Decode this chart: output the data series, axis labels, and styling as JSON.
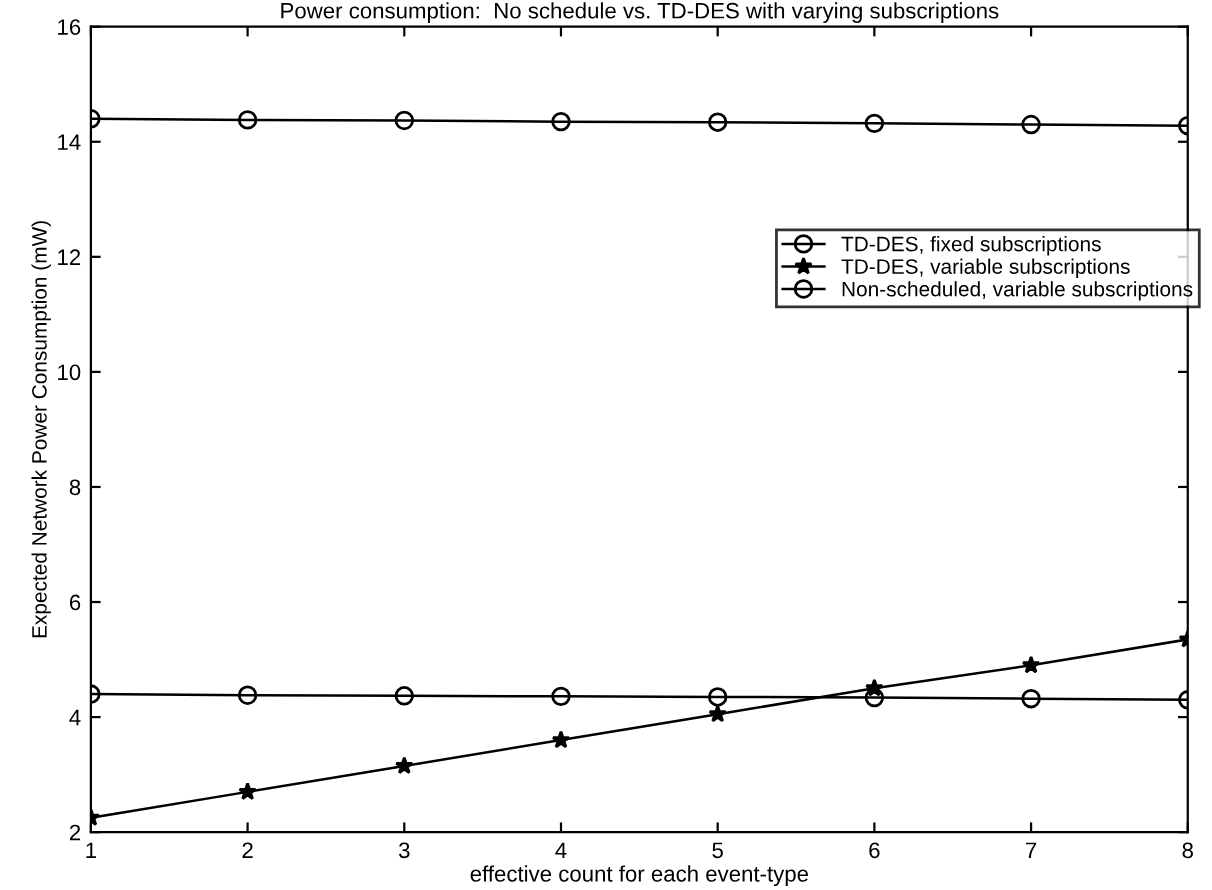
{
  "chart_data": {
    "type": "line",
    "title": "Power consumption:  No schedule vs. TD-DES with varying subscriptions",
    "xlabel": "effective count for each event-type",
    "ylabel": "Expected Network Power Consumption (mW)",
    "x": [
      1,
      2,
      3,
      4,
      5,
      6,
      7,
      8
    ],
    "series": [
      {
        "name": "TD-DES, fixed subscriptions",
        "color": "#000000",
        "marker": "circle",
        "values": [
          4.4,
          4.38,
          4.37,
          4.36,
          4.35,
          4.34,
          4.32,
          4.3
        ]
      },
      {
        "name": "TD-DES, variable subscriptions",
        "color": "#000000",
        "marker": "star",
        "values": [
          2.25,
          2.7,
          3.15,
          3.6,
          4.05,
          4.5,
          4.9,
          5.35
        ]
      },
      {
        "name": "Non-scheduled, variable subscriptions",
        "color": "#000000",
        "marker": "circle",
        "values": [
          14.4,
          14.38,
          14.37,
          14.35,
          14.34,
          14.32,
          14.3,
          14.28
        ]
      }
    ],
    "xlim": [
      1,
      8
    ],
    "xticks": [
      1,
      2,
      3,
      4,
      5,
      6,
      7,
      8
    ],
    "ylim": [
      2,
      16
    ],
    "yticks": [
      2,
      4,
      6,
      8,
      10,
      12,
      14,
      16
    ],
    "grid": false,
    "legend": "center right",
    "line_style": "solid"
  }
}
